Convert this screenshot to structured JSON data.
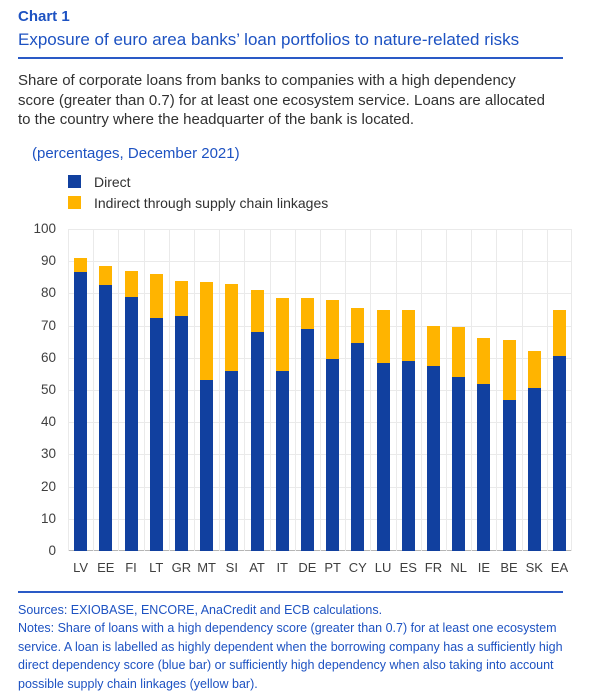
{
  "header": {
    "chart_label": "Chart 1",
    "title": "Exposure of euro area banks’ loan portfolios to nature-related risks",
    "description": "Share of corporate loans from banks to companies with a high dependency score (greater than 0.7) for at least one ecosystem service. Loans are allocated to the country where the headquarter of the bank is located.",
    "units_note": "(percentages, December 2021)"
  },
  "legend": {
    "items": [
      {
        "label": "Direct",
        "color": "#11409f"
      },
      {
        "label": "Indirect through supply chain linkages",
        "color": "#ffb400"
      }
    ],
    "position": "top-left"
  },
  "footer": {
    "sources": "Sources: EXIOBASE, ENCORE, AnaCredit and ECB calculations.",
    "notes": "Notes: Share of loans with a high dependency score (greater than 0.7) for at least one ecosystem service. A loan is labelled as highly dependent when the borrowing company has a sufficiently high direct dependency score (blue bar) or sufficiently high dependency when also taking into account possible supply chain linkages (yellow bar)."
  },
  "colors": {
    "accent_blue_text": "#1d52c2",
    "bar_direct": "#11409f",
    "bar_indirect": "#ffb400",
    "body_text": "#313131",
    "axis_text": "#3f3f3f",
    "gridline": "#eaeaea",
    "axis_line": "#b5b5b5"
  },
  "chart_data": {
    "type": "bar",
    "stacked": true,
    "title": "Exposure of euro area banks’ loan portfolios to nature-related risks",
    "subtitle": "(percentages, December 2021)",
    "categories": [
      "LV",
      "EE",
      "FI",
      "LT",
      "GR",
      "MT",
      "SI",
      "AT",
      "IT",
      "DE",
      "PT",
      "CY",
      "LU",
      "ES",
      "FR",
      "NL",
      "IE",
      "BE",
      "SK",
      "EA"
    ],
    "series": [
      {
        "name": "Direct",
        "color": "#11409f",
        "values": [
          86.5,
          82.5,
          79,
          72.5,
          73,
          53,
          56,
          68,
          56,
          69,
          59.5,
          64.5,
          58.5,
          59,
          57.5,
          54,
          52,
          47,
          50.5,
          60.5
        ]
      },
      {
        "name": "Indirect through supply chain linkages",
        "color": "#ffb400",
        "values": [
          4.5,
          6,
          8,
          13.5,
          11,
          30.5,
          27,
          13,
          22.5,
          9.5,
          18.5,
          11,
          16.5,
          16,
          12.5,
          15.5,
          14,
          18.5,
          11.5,
          14.5
        ]
      }
    ],
    "stack_totals": [
      91,
      88.5,
      87,
      86,
      84,
      83.5,
      83,
      81,
      78.5,
      78.5,
      78,
      75.5,
      75,
      75,
      70,
      69.5,
      66,
      65.5,
      62,
      75
    ],
    "xlabel": "",
    "ylabel": "",
    "ylim": [
      0,
      100
    ],
    "ytick_step": 10,
    "grid": true,
    "legend_position": "top-left"
  }
}
